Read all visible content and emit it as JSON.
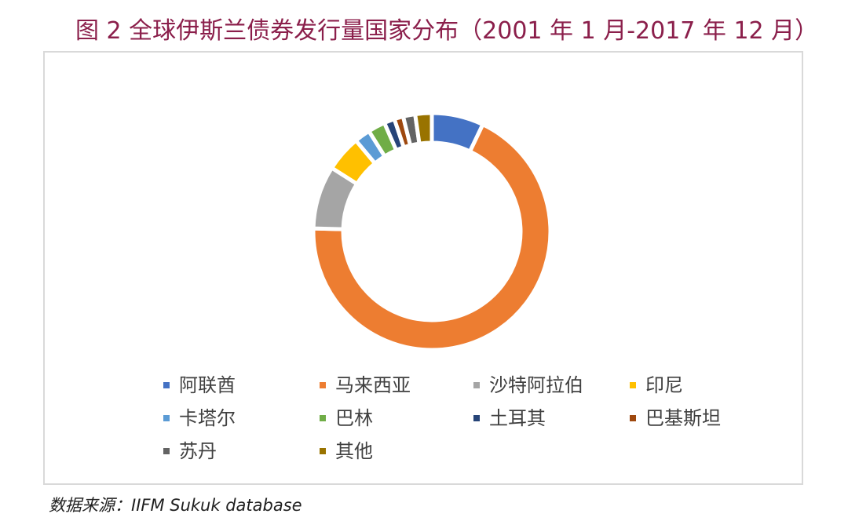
{
  "header": {
    "title": "图 2  全球伊斯兰债券发行量国家分布（2001 年 1 月-2017 年 12 月）"
  },
  "source_note": "数据来源：IIFM Sukuk database",
  "chart_data": {
    "type": "pie",
    "style": "donut",
    "title": "图 2  全球伊斯兰债券发行量国家分布（2001 年 1 月-2017 年 12 月）",
    "unit": "%",
    "categories": [
      "阿联酋",
      "马来西亚",
      "沙特阿拉伯",
      "印尼",
      "卡塔尔",
      "巴林",
      "土耳其",
      "巴基斯坦",
      "苏丹",
      "其他"
    ],
    "values": [
      6.9,
      66.7,
      8.4,
      4.8,
      2.1,
      2.3,
      1.4,
      1.2,
      1.6,
      2.2
    ],
    "colors": [
      "#4472c4",
      "#ed7d31",
      "#a5a5a5",
      "#ffc000",
      "#5b9bd5",
      "#70ad47",
      "#264478",
      "#9e480e",
      "#636363",
      "#997300"
    ],
    "legend_position": "bottom",
    "grid": false
  }
}
